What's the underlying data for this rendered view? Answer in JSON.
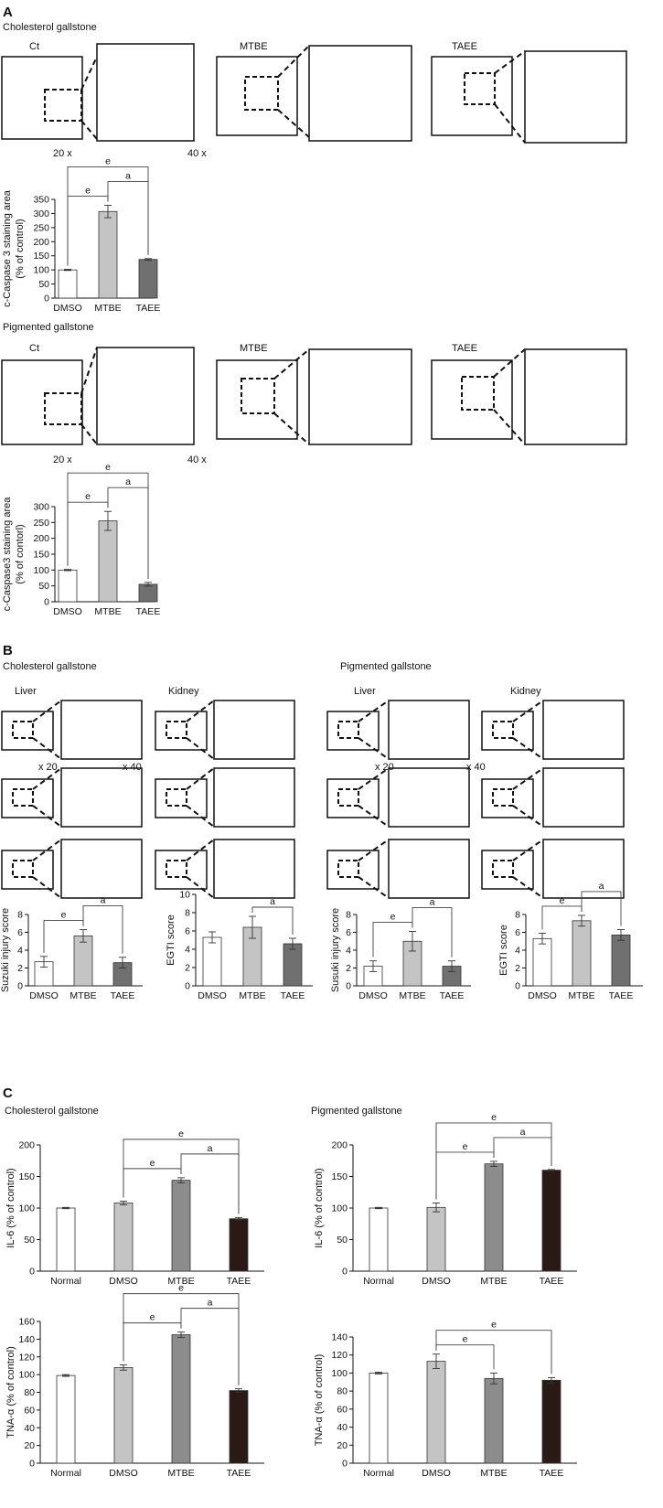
{
  "panels": {
    "A": {
      "letter": "A",
      "chol_title": "Cholesterol gallstone",
      "pig_title": "Pigmented gallstone",
      "img_labels": {
        "ct": "Ct",
        "mtbe": "MTBE",
        "taee": "TAEE"
      },
      "mag": {
        "x20": "20 x",
        "x40": "40 x"
      }
    },
    "B": {
      "letter": "B",
      "chol_title": "Cholesterol gallstone",
      "pig_title": "Pigmented gallstone",
      "liver": "Liver",
      "kidney": "Kidney",
      "mag": {
        "x20": "x 20",
        "x40": "x 40"
      }
    },
    "C": {
      "letter": "C",
      "chol_title": "Cholesterol gallstone",
      "pig_title": "Pigmented gallstone"
    }
  },
  "colors": {
    "white_bar": "#ffffff",
    "light_bar": "#c4c4c4",
    "mid_bar": "#8c8c8c",
    "dark_bar": "#707070",
    "black_bar": "#2a1a16",
    "ihc_brown": "#b0603a",
    "ihc_blue": "#8a7fb6",
    "he_pink": "#e4607a"
  },
  "chart_data": [
    {
      "id": "A_chol",
      "type": "bar",
      "categories": [
        "DMSO",
        "MTBE",
        "TAEE"
      ],
      "values": [
        100,
        307,
        137
      ],
      "errors": [
        2,
        22,
        3
      ],
      "ylabel_lines": [
        "c-Caspase 3 staining area",
        "(% of control)"
      ],
      "ylim": [
        0,
        350
      ],
      "yticks": [
        0,
        50,
        100,
        150,
        200,
        250,
        300,
        350
      ],
      "bar_colors": [
        "#ffffff",
        "#c4c4c4",
        "#707070"
      ],
      "sig": [
        {
          "from": 0,
          "to": 1,
          "label": "e"
        },
        {
          "from": 1,
          "to": 2,
          "label": "a"
        },
        {
          "from": 0,
          "to": 2,
          "label": "e"
        }
      ]
    },
    {
      "id": "A_pig",
      "type": "bar",
      "categories": [
        "DMSO",
        "MTBE",
        "TAEE"
      ],
      "values": [
        100,
        255,
        55
      ],
      "errors": [
        2,
        30,
        6
      ],
      "ylabel_lines": [
        "c-Caspase3 staining area",
        "(% of contorl)"
      ],
      "ylim": [
        0,
        300
      ],
      "yticks": [
        0,
        50,
        100,
        150,
        200,
        250,
        300
      ],
      "bar_colors": [
        "#ffffff",
        "#c4c4c4",
        "#707070"
      ],
      "sig": [
        {
          "from": 0,
          "to": 1,
          "label": "e"
        },
        {
          "from": 1,
          "to": 2,
          "label": "a"
        },
        {
          "from": 0,
          "to": 2,
          "label": "e"
        }
      ]
    },
    {
      "id": "B_chol_suzuki",
      "type": "bar",
      "categories": [
        "DMSO",
        "MTBE",
        "TAEE"
      ],
      "values": [
        2.7,
        5.6,
        2.6
      ],
      "errors": [
        0.6,
        0.7,
        0.6
      ],
      "ylabel_lines": [
        "Suzuki injury score"
      ],
      "ylim": [
        0,
        8
      ],
      "yticks": [
        0,
        2,
        4,
        6,
        8
      ],
      "bar_colors": [
        "#ffffff",
        "#c4c4c4",
        "#707070"
      ],
      "sig": [
        {
          "from": 0,
          "to": 1,
          "label": "e"
        },
        {
          "from": 1,
          "to": 2,
          "label": "a"
        }
      ]
    },
    {
      "id": "B_chol_egti",
      "type": "bar",
      "categories": [
        "DMSO",
        "MTBE",
        "TAEE"
      ],
      "values": [
        5.3,
        6.4,
        4.6
      ],
      "errors": [
        0.6,
        1.2,
        0.6
      ],
      "ylabel_lines": [
        "EGTI score"
      ],
      "ylim": [
        0,
        10
      ],
      "yticks": [
        0,
        2,
        4,
        6,
        8,
        10
      ],
      "bar_colors": [
        "#ffffff",
        "#c4c4c4",
        "#707070"
      ],
      "sig": [
        {
          "from": 1,
          "to": 2,
          "label": "a"
        }
      ]
    },
    {
      "id": "B_pig_suzuki",
      "type": "bar",
      "categories": [
        "DMSO",
        "MTBE",
        "TAEE"
      ],
      "values": [
        2.2,
        5.0,
        2.2
      ],
      "errors": [
        0.6,
        1.1,
        0.6
      ],
      "ylabel_lines": [
        "Susuki injury score"
      ],
      "ylim": [
        0,
        8
      ],
      "yticks": [
        0,
        2,
        4,
        6,
        8
      ],
      "bar_colors": [
        "#ffffff",
        "#c4c4c4",
        "#707070"
      ],
      "sig": [
        {
          "from": 0,
          "to": 1,
          "label": "e"
        },
        {
          "from": 1,
          "to": 2,
          "label": "a"
        }
      ]
    },
    {
      "id": "B_pig_egti",
      "type": "bar",
      "categories": [
        "DMSO",
        "MTBE",
        "TAEE"
      ],
      "values": [
        5.3,
        7.3,
        5.7
      ],
      "errors": [
        0.6,
        0.6,
        0.6
      ],
      "ylabel_lines": [
        "EGTI score"
      ],
      "ylim": [
        0,
        8
      ],
      "yticks": [
        0,
        2,
        4,
        6,
        8
      ],
      "bar_colors": [
        "#ffffff",
        "#c4c4c4",
        "#707070"
      ],
      "sig": [
        {
          "from": 0,
          "to": 1,
          "label": "e"
        },
        {
          "from": 1,
          "to": 2,
          "label": "a"
        }
      ]
    },
    {
      "id": "C_chol_il6",
      "type": "bar",
      "categories": [
        "Normal",
        "DMSO",
        "MTBE",
        "TAEE"
      ],
      "values": [
        100,
        108,
        144,
        83
      ],
      "errors": [
        1,
        3,
        4,
        2
      ],
      "ylabel_lines": [
        "IL-6 (% of control)"
      ],
      "ylim": [
        0,
        200
      ],
      "yticks": [
        0,
        50,
        100,
        150,
        200
      ],
      "bar_colors": [
        "#ffffff",
        "#c4c4c4",
        "#8c8c8c",
        "#2a1a16"
      ],
      "sig": [
        {
          "from": 1,
          "to": 2,
          "label": "e"
        },
        {
          "from": 2,
          "to": 3,
          "label": "a"
        },
        {
          "from": 1,
          "to": 3,
          "label": "e"
        }
      ]
    },
    {
      "id": "C_pig_il6",
      "type": "bar",
      "categories": [
        "Normal",
        "DMSO",
        "MTBE",
        "TAEE"
      ],
      "values": [
        100,
        101,
        170,
        160
      ],
      "errors": [
        1,
        7,
        4,
        1
      ],
      "ylabel_lines": [
        "IL-6 (% of control)"
      ],
      "ylim": [
        0,
        200
      ],
      "yticks": [
        0,
        50,
        100,
        150,
        200
      ],
      "bar_colors": [
        "#ffffff",
        "#c4c4c4",
        "#8c8c8c",
        "#2a1a16"
      ],
      "sig": [
        {
          "from": 1,
          "to": 2,
          "label": "e"
        },
        {
          "from": 2,
          "to": 3,
          "label": "a"
        },
        {
          "from": 1,
          "to": 3,
          "label": "e"
        }
      ]
    },
    {
      "id": "C_chol_tna",
      "type": "bar",
      "categories": [
        "Normal",
        "DMSO",
        "MTBE",
        "TAEE"
      ],
      "values": [
        99,
        108,
        145,
        82
      ],
      "errors": [
        1,
        3,
        3,
        2
      ],
      "ylabel_lines": [
        "TNA-α (% of control)"
      ],
      "ylim": [
        0,
        160
      ],
      "yticks": [
        0,
        20,
        40,
        60,
        80,
        100,
        120,
        140,
        160
      ],
      "bar_colors": [
        "#ffffff",
        "#c4c4c4",
        "#8c8c8c",
        "#2a1a16"
      ],
      "sig": [
        {
          "from": 1,
          "to": 2,
          "label": "e"
        },
        {
          "from": 2,
          "to": 3,
          "label": "a"
        },
        {
          "from": 1,
          "to": 3,
          "label": "e"
        }
      ]
    },
    {
      "id": "C_pig_tna",
      "type": "bar",
      "categories": [
        "Normal",
        "DMSO",
        "MTBE",
        "TAEE"
      ],
      "values": [
        100,
        113,
        94,
        92
      ],
      "errors": [
        1,
        8,
        6,
        3
      ],
      "ylabel_lines": [
        "TNA-α (% of control)"
      ],
      "ylim": [
        0,
        140
      ],
      "yticks": [
        0,
        20,
        40,
        60,
        80,
        100,
        120,
        140
      ],
      "bar_colors": [
        "#ffffff",
        "#c4c4c4",
        "#8c8c8c",
        "#2a1a16"
      ],
      "sig": [
        {
          "from": 1,
          "to": 2,
          "label": "e"
        },
        {
          "from": 1,
          "to": 3,
          "label": "e"
        }
      ]
    }
  ]
}
